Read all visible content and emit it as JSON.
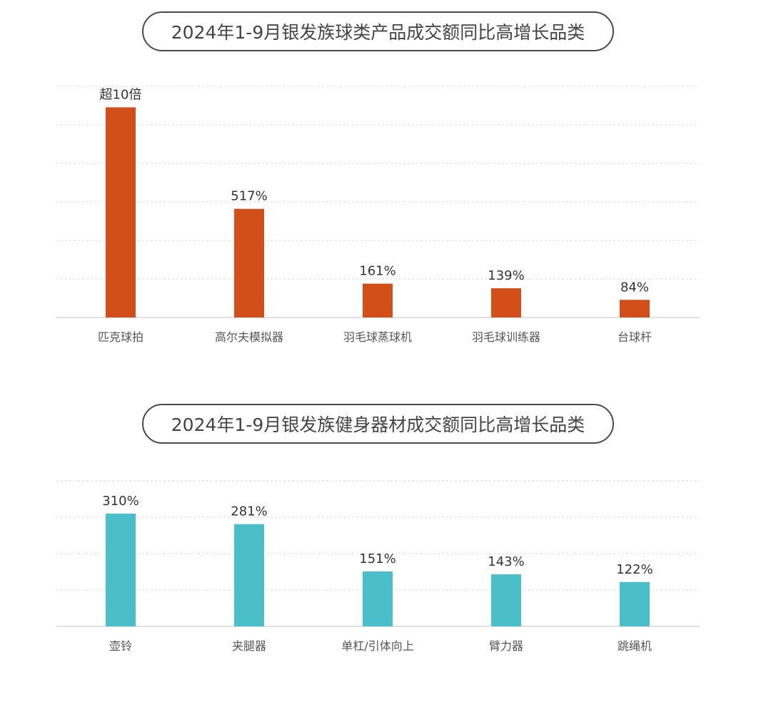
{
  "chart_data": [
    {
      "type": "bar",
      "title": "2024年1-9月银发族球类产品成交额同比高增长品类",
      "categories": [
        "匹克球拍",
        "高尔夫模拟器",
        "羽毛球蒸球机",
        "羽毛球训练器",
        "台球杆"
      ],
      "values": [
        1000,
        517,
        161,
        139,
        84
      ],
      "value_labels": [
        "超10倍",
        "517%",
        "161%",
        "139%",
        "84%"
      ],
      "unit": "%",
      "bar_color": "#D24F1A",
      "ylim": [
        0,
        1100
      ],
      "grid": true,
      "grid_style": "dashed",
      "xlabel": "",
      "ylabel": ""
    },
    {
      "type": "bar",
      "title": "2024年1-9月银发族健身器材成交额同比高增长品类",
      "categories": [
        "壶铃",
        "夹腿器",
        "单杠/引体向上",
        "臂力器",
        "跳绳机"
      ],
      "values": [
        310,
        281,
        151,
        143,
        122
      ],
      "value_labels": [
        "310%",
        "281%",
        "151%",
        "143%",
        "122%"
      ],
      "unit": "%",
      "bar_color": "#4BBFC9",
      "ylim": [
        0,
        400
      ],
      "grid": true,
      "grid_style": "dashed",
      "xlabel": "",
      "ylabel": ""
    }
  ]
}
